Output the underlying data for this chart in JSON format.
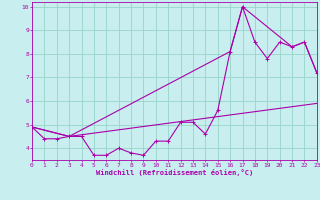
{
  "xlabel": "Windchill (Refroidissement éolien,°C)",
  "bg_color": "#c8eef0",
  "grid_color": "#96d4c8",
  "line_color": "#aa00aa",
  "xmin": 0,
  "xmax": 23,
  "ymin": 3.5,
  "ymax": 10.2,
  "yticks": [
    4,
    5,
    6,
    7,
    8,
    9,
    10
  ],
  "xticks": [
    0,
    1,
    2,
    3,
    4,
    5,
    6,
    7,
    8,
    9,
    10,
    11,
    12,
    13,
    14,
    15,
    16,
    17,
    18,
    19,
    20,
    21,
    22,
    23
  ],
  "line1_x": [
    0,
    1,
    2,
    3,
    4,
    5,
    6,
    7,
    8,
    9,
    10,
    11,
    12,
    13,
    14,
    15,
    16,
    17,
    18,
    19,
    20,
    21,
    22,
    23
  ],
  "line1_y": [
    4.9,
    4.4,
    4.4,
    4.5,
    4.5,
    3.7,
    3.7,
    4.0,
    3.8,
    3.7,
    4.3,
    4.3,
    5.1,
    5.1,
    4.6,
    5.6,
    8.1,
    10.0,
    8.5,
    7.8,
    8.5,
    8.3,
    8.5,
    7.2
  ],
  "line2_x": [
    0,
    3,
    23
  ],
  "line2_y": [
    4.9,
    4.5,
    5.9
  ],
  "line3_x": [
    0,
    3,
    16,
    17,
    21,
    22,
    23
  ],
  "line3_y": [
    4.9,
    4.5,
    8.1,
    10.0,
    8.3,
    8.5,
    7.2
  ]
}
